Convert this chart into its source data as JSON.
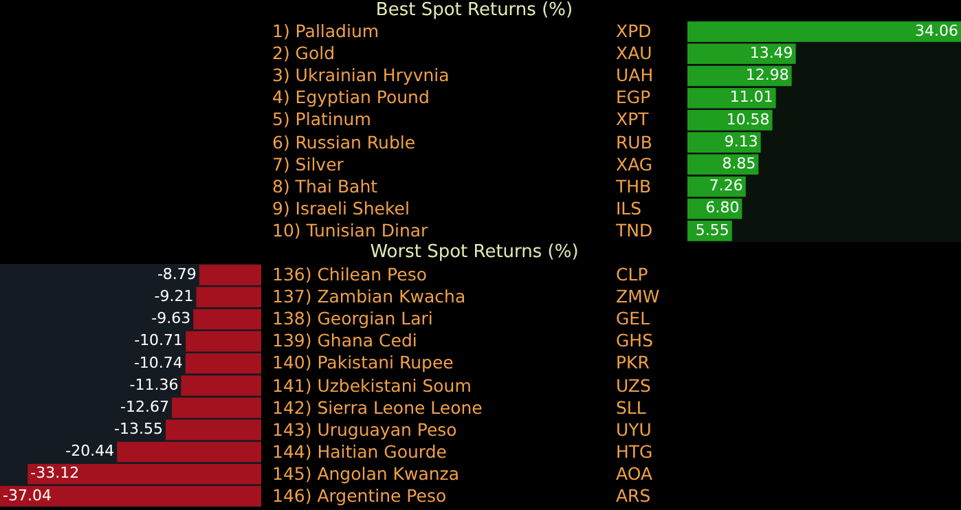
{
  "chart_data": [
    {
      "type": "bar",
      "orientation": "horizontal",
      "title": "Best Spot Returns (%)",
      "tick_labels": "y",
      "color": "#1f9e1f",
      "categories": [
        "1) Palladium",
        "2) Gold",
        "3) Ukrainian Hryvnia",
        "4) Egyptian Pound",
        "5) Platinum",
        "6) Russian Ruble",
        "7) Silver",
        "8) Thai Baht",
        "9) Israeli Shekel",
        "10) Tunisian Dinar"
      ],
      "y2_categories": [
        "XPD",
        "XAU",
        "UAH",
        "EGP",
        "XPT",
        "RUB",
        "XAG",
        "THB",
        "ILS",
        "TND"
      ],
      "values": [
        34.06,
        13.49,
        12.98,
        11.01,
        10.58,
        9.13,
        8.85,
        7.26,
        6.8,
        5.55
      ],
      "value_labels": [
        "34.06",
        "13.49",
        "12.98",
        "11.01",
        "10.58",
        "9.13",
        "8.85",
        "7.26",
        "6.80",
        "5.55"
      ]
    },
    {
      "type": "bar",
      "orientation": "horizontal",
      "title": "Worst Spot Returns (%)",
      "tick_labels": "y",
      "color": "#a3121e",
      "categories": [
        "136) Chilean Peso",
        "137) Zambian Kwacha",
        "138) Georgian Lari",
        "139) Ghana Cedi",
        "140) Pakistani Rupee",
        "141) Uzbekistani Soum",
        "142) Sierra Leone Leone",
        "143) Uruguayan Peso",
        "144) Haitian Gourde",
        "145) Angolan Kwanza",
        "146) Argentine Peso"
      ],
      "y2_categories": [
        "CLP",
        "ZMW",
        "GEL",
        "GHS",
        "PKR",
        "UZS",
        "SLL",
        "UYU",
        "HTG",
        "AOA",
        "ARS"
      ],
      "values": [
        -8.79,
        -9.21,
        -9.63,
        -10.71,
        -10.74,
        -11.36,
        -12.67,
        -13.55,
        -20.44,
        -33.12,
        -37.04
      ],
      "value_labels": [
        "-8.79",
        "-9.21",
        "-9.63",
        "-10.71",
        "-10.74",
        "-11.36",
        "-12.67",
        "-13.55",
        "-20.44",
        "-33.12",
        "-37.04"
      ]
    }
  ]
}
